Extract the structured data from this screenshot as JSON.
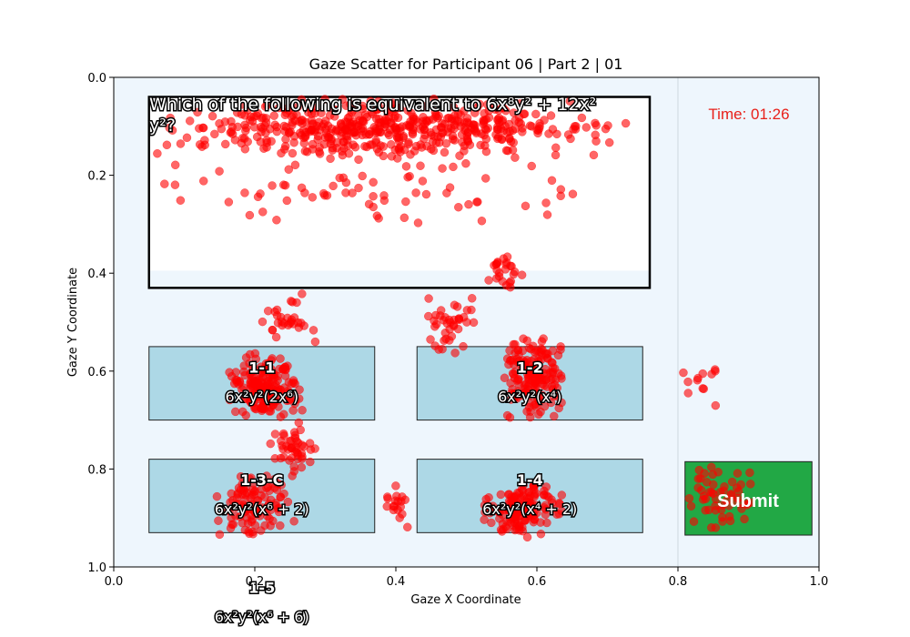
{
  "chart_data": {
    "type": "scatter",
    "title": "Gaze Scatter for Participant 06 | Part 2 | 01",
    "xlabel": "Gaze X Coordinate",
    "ylabel": "Gaze Y Coordinate",
    "xlim": [
      0.0,
      1.0
    ],
    "ylim": [
      1.0,
      0.0
    ],
    "y_inverted": true,
    "grid": false,
    "xticks": [
      "0.0",
      "0.2",
      "0.4",
      "0.6",
      "0.8",
      "1.0"
    ],
    "yticks": [
      "0.0",
      "0.2",
      "0.4",
      "0.6",
      "0.8",
      "1.0"
    ],
    "point_color": "#ff0000",
    "background_color": "#eef6fd",
    "question": {
      "text_line1": "Which of the following is equivalent to 6x⁸y² + 12x²",
      "text_line2": "y²?",
      "box": [
        0.05,
        0.04,
        0.76,
        0.43
      ]
    },
    "timer": "Time: 01:26",
    "submit_label": "Submit",
    "submit_color": "#22a845",
    "option_fill": "#add8e6",
    "options": [
      {
        "id": "1-1",
        "expr": "6x²y²(2x⁶)",
        "box": [
          0.05,
          0.55,
          0.37,
          0.7
        ]
      },
      {
        "id": "1-2",
        "expr": "6x²y²(x⁴)",
        "box": [
          0.43,
          0.55,
          0.75,
          0.7
        ]
      },
      {
        "id": "1-3-C",
        "expr": "6x²y²(x⁶ + 2)",
        "box": [
          0.05,
          0.78,
          0.37,
          0.93
        ]
      },
      {
        "id": "1-4",
        "expr": "6x²y²(x⁴ + 2)",
        "box": [
          0.43,
          0.78,
          0.75,
          0.93
        ]
      },
      {
        "id": "1-5",
        "expr": "6x²y²(x⁶ + 6)",
        "box": [
          0.05,
          1.0,
          0.37,
          1.15
        ]
      }
    ],
    "clusters": [
      {
        "name": "question-top-band",
        "x": [
          0.045,
          0.73
        ],
        "y": [
          0.04,
          0.17
        ],
        "n": 520
      },
      {
        "name": "question-lower-scatter",
        "x": [
          0.05,
          0.7
        ],
        "y": [
          0.17,
          0.3
        ],
        "n": 70
      },
      {
        "name": "option-1-1",
        "x": [
          0.16,
          0.27
        ],
        "y": [
          0.56,
          0.7
        ],
        "n": 190
      },
      {
        "name": "connector-left-upper",
        "x": [
          0.21,
          0.29
        ],
        "y": [
          0.43,
          0.55
        ],
        "n": 30
      },
      {
        "name": "connector-left-lower",
        "x": [
          0.22,
          0.29
        ],
        "y": [
          0.7,
          0.82
        ],
        "n": 45
      },
      {
        "name": "option-1-2",
        "x": [
          0.55,
          0.64
        ],
        "y": [
          0.52,
          0.7
        ],
        "n": 170
      },
      {
        "name": "connector-mid",
        "x": [
          0.44,
          0.52
        ],
        "y": [
          0.43,
          0.58
        ],
        "n": 40
      },
      {
        "name": "connector-right-upper",
        "x": [
          0.53,
          0.58
        ],
        "y": [
          0.36,
          0.45
        ],
        "n": 25
      },
      {
        "name": "option-1-3-C",
        "x": [
          0.14,
          0.26
        ],
        "y": [
          0.8,
          0.95
        ],
        "n": 110
      },
      {
        "name": "option-1-4",
        "x": [
          0.52,
          0.64
        ],
        "y": [
          0.82,
          0.94
        ],
        "n": 150
      },
      {
        "name": "between-3-4",
        "x": [
          0.38,
          0.43
        ],
        "y": [
          0.83,
          0.92
        ],
        "n": 18
      },
      {
        "name": "submit-area",
        "x": [
          0.81,
          0.91
        ],
        "y": [
          0.77,
          0.93
        ],
        "n": 55
      },
      {
        "name": "right-scatter",
        "x": [
          0.8,
          0.87
        ],
        "y": [
          0.59,
          0.68
        ],
        "n": 12
      }
    ]
  }
}
